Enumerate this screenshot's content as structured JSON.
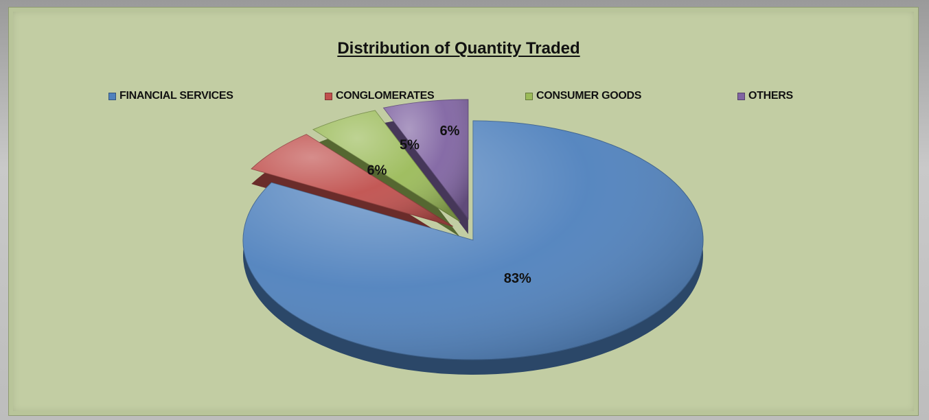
{
  "chart_data": {
    "type": "pie",
    "title": "Distribution of Quantity Traded",
    "legend_position": "top",
    "slices": [
      {
        "name": "FINANCIAL SERVICES",
        "value": 83,
        "label": "83%",
        "color": "#4f81bd"
      },
      {
        "name": "CONGLOMERATES",
        "value": 6,
        "label": "6%",
        "color": "#c0504d"
      },
      {
        "name": "CONSUMER GOODS",
        "value": 5,
        "label": "5%",
        "color": "#9bbb59"
      },
      {
        "name": "OTHERS",
        "value": 6,
        "label": "6%",
        "color": "#8064a2"
      }
    ]
  },
  "colors": {
    "background": "#c2cda3",
    "frame": "#a9a9a9"
  }
}
